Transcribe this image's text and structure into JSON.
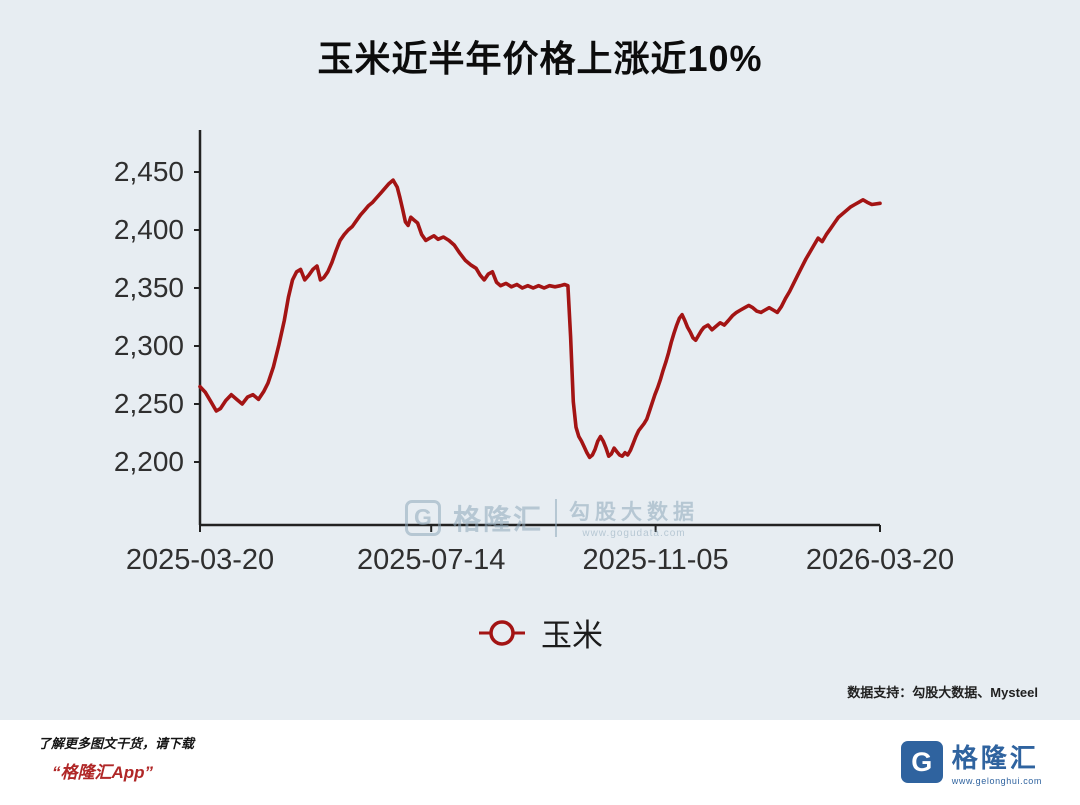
{
  "title": "玉米近半年价格上涨近10%",
  "legend": {
    "label": "玉米"
  },
  "watermark": {
    "logo_letter": "G",
    "brand": "格隆汇",
    "product": "勾股大数据",
    "url": "www.gogudata.com"
  },
  "data_support": "数据支持：勾股大数据、Mysteel",
  "footer": {
    "promo_line1": "了解更多图文干货，请下载",
    "promo_line2": "“格隆汇App”",
    "logo_letter": "G",
    "logo_text": "格隆汇",
    "logo_url": "www.gelonghui.com"
  },
  "colors": {
    "line": "#a31414",
    "axis": "#222222",
    "tick_text": "#2f2f2f",
    "background": "#e7edf2",
    "footer_bg": "#ffffff",
    "logo_blue": "#2f639f",
    "footer_red": "#b02727",
    "watermark": "#8fa9bb"
  },
  "chart_data": {
    "type": "line",
    "title": "玉米近半年价格上涨近10%",
    "xlabel": "",
    "ylabel": "",
    "grid": false,
    "legend_position": "bottom",
    "x_range": [
      "2025-03-20",
      "2026-03-20"
    ],
    "ylim": [
      2145,
      2486
    ],
    "y_ticks": {
      "values": [
        2450,
        2400,
        2350,
        2300,
        2250,
        2200
      ],
      "labels": [
        "2,450",
        "2,400",
        "2,350",
        "2,300",
        "2,250",
        "2,200"
      ]
    },
    "x_ticks": {
      "labels": [
        "2025-03-20",
        "2025-07-14",
        "2025-11-05",
        "2026-03-20"
      ],
      "fractions": [
        0,
        0.34,
        0.67,
        1
      ]
    },
    "series": [
      {
        "name": "玉米",
        "color": "#a31414",
        "points": [
          [
            0.0,
            2265
          ],
          [
            0.008,
            2260
          ],
          [
            0.016,
            2252
          ],
          [
            0.024,
            2244
          ],
          [
            0.03,
            2246
          ],
          [
            0.038,
            2253
          ],
          [
            0.046,
            2258
          ],
          [
            0.054,
            2254
          ],
          [
            0.062,
            2250
          ],
          [
            0.07,
            2256
          ],
          [
            0.078,
            2258
          ],
          [
            0.086,
            2254
          ],
          [
            0.094,
            2261
          ],
          [
            0.1,
            2268
          ],
          [
            0.108,
            2282
          ],
          [
            0.116,
            2301
          ],
          [
            0.124,
            2322
          ],
          [
            0.13,
            2342
          ],
          [
            0.136,
            2357
          ],
          [
            0.142,
            2364
          ],
          [
            0.148,
            2366
          ],
          [
            0.154,
            2357
          ],
          [
            0.16,
            2361
          ],
          [
            0.166,
            2366
          ],
          [
            0.172,
            2369
          ],
          [
            0.177,
            2357
          ],
          [
            0.182,
            2359
          ],
          [
            0.188,
            2364
          ],
          [
            0.194,
            2372
          ],
          [
            0.2,
            2382
          ],
          [
            0.206,
            2391
          ],
          [
            0.212,
            2396
          ],
          [
            0.218,
            2400
          ],
          [
            0.224,
            2403
          ],
          [
            0.23,
            2408
          ],
          [
            0.236,
            2413
          ],
          [
            0.242,
            2417
          ],
          [
            0.248,
            2421
          ],
          [
            0.254,
            2424
          ],
          [
            0.26,
            2428
          ],
          [
            0.266,
            2432
          ],
          [
            0.272,
            2436
          ],
          [
            0.278,
            2440
          ],
          [
            0.284,
            2443
          ],
          [
            0.29,
            2437
          ],
          [
            0.294,
            2428
          ],
          [
            0.298,
            2418
          ],
          [
            0.302,
            2407
          ],
          [
            0.306,
            2404
          ],
          [
            0.31,
            2411
          ],
          [
            0.314,
            2409
          ],
          [
            0.32,
            2406
          ],
          [
            0.326,
            2396
          ],
          [
            0.332,
            2391
          ],
          [
            0.338,
            2393
          ],
          [
            0.344,
            2395
          ],
          [
            0.35,
            2392
          ],
          [
            0.358,
            2394
          ],
          [
            0.366,
            2391
          ],
          [
            0.374,
            2387
          ],
          [
            0.382,
            2380
          ],
          [
            0.39,
            2374
          ],
          [
            0.398,
            2370
          ],
          [
            0.406,
            2367
          ],
          [
            0.412,
            2361
          ],
          [
            0.418,
            2357
          ],
          [
            0.424,
            2362
          ],
          [
            0.43,
            2364
          ],
          [
            0.436,
            2355
          ],
          [
            0.442,
            2352
          ],
          [
            0.45,
            2354
          ],
          [
            0.458,
            2351
          ],
          [
            0.466,
            2353
          ],
          [
            0.474,
            2350
          ],
          [
            0.482,
            2352
          ],
          [
            0.49,
            2350
          ],
          [
            0.498,
            2352
          ],
          [
            0.506,
            2350
          ],
          [
            0.514,
            2352
          ],
          [
            0.522,
            2351
          ],
          [
            0.53,
            2352
          ],
          [
            0.536,
            2353
          ],
          [
            0.541,
            2352
          ],
          [
            0.545,
            2308
          ],
          [
            0.549,
            2252
          ],
          [
            0.553,
            2230
          ],
          [
            0.557,
            2222
          ],
          [
            0.561,
            2218
          ],
          [
            0.565,
            2213
          ],
          [
            0.569,
            2208
          ],
          [
            0.573,
            2204
          ],
          [
            0.577,
            2206
          ],
          [
            0.581,
            2211
          ],
          [
            0.585,
            2218
          ],
          [
            0.589,
            2222
          ],
          [
            0.593,
            2218
          ],
          [
            0.597,
            2212
          ],
          [
            0.601,
            2205
          ],
          [
            0.605,
            2207
          ],
          [
            0.609,
            2212
          ],
          [
            0.613,
            2209
          ],
          [
            0.617,
            2206
          ],
          [
            0.621,
            2205
          ],
          [
            0.625,
            2208
          ],
          [
            0.629,
            2206
          ],
          [
            0.633,
            2210
          ],
          [
            0.637,
            2216
          ],
          [
            0.641,
            2222
          ],
          [
            0.645,
            2227
          ],
          [
            0.649,
            2230
          ],
          [
            0.653,
            2233
          ],
          [
            0.657,
            2237
          ],
          [
            0.661,
            2244
          ],
          [
            0.665,
            2251
          ],
          [
            0.669,
            2258
          ],
          [
            0.673,
            2264
          ],
          [
            0.677,
            2271
          ],
          [
            0.681,
            2279
          ],
          [
            0.685,
            2286
          ],
          [
            0.689,
            2294
          ],
          [
            0.693,
            2303
          ],
          [
            0.697,
            2311
          ],
          [
            0.701,
            2318
          ],
          [
            0.705,
            2324
          ],
          [
            0.709,
            2327
          ],
          [
            0.713,
            2322
          ],
          [
            0.717,
            2316
          ],
          [
            0.721,
            2312
          ],
          [
            0.725,
            2307
          ],
          [
            0.729,
            2305
          ],
          [
            0.733,
            2309
          ],
          [
            0.737,
            2313
          ],
          [
            0.741,
            2316
          ],
          [
            0.747,
            2318
          ],
          [
            0.753,
            2314
          ],
          [
            0.759,
            2317
          ],
          [
            0.765,
            2320
          ],
          [
            0.771,
            2318
          ],
          [
            0.777,
            2322
          ],
          [
            0.783,
            2326
          ],
          [
            0.789,
            2329
          ],
          [
            0.795,
            2331
          ],
          [
            0.801,
            2333
          ],
          [
            0.807,
            2335
          ],
          [
            0.813,
            2333
          ],
          [
            0.819,
            2330
          ],
          [
            0.825,
            2329
          ],
          [
            0.831,
            2331
          ],
          [
            0.837,
            2333
          ],
          [
            0.843,
            2331
          ],
          [
            0.849,
            2329
          ],
          [
            0.855,
            2334
          ],
          [
            0.861,
            2341
          ],
          [
            0.867,
            2347
          ],
          [
            0.873,
            2354
          ],
          [
            0.879,
            2361
          ],
          [
            0.885,
            2368
          ],
          [
            0.891,
            2375
          ],
          [
            0.897,
            2381
          ],
          [
            0.903,
            2387
          ],
          [
            0.909,
            2393
          ],
          [
            0.915,
            2390
          ],
          [
            0.921,
            2396
          ],
          [
            0.927,
            2401
          ],
          [
            0.933,
            2406
          ],
          [
            0.939,
            2411
          ],
          [
            0.945,
            2414
          ],
          [
            0.951,
            2417
          ],
          [
            0.957,
            2420
          ],
          [
            0.963,
            2422
          ],
          [
            0.969,
            2424
          ],
          [
            0.975,
            2426
          ],
          [
            0.981,
            2424
          ],
          [
            0.988,
            2422
          ],
          [
            1.0,
            2423
          ]
        ]
      }
    ]
  }
}
